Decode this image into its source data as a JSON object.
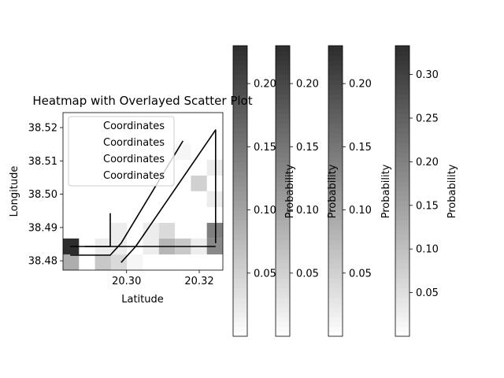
{
  "chart_data": {
    "type": "heatmap",
    "title": "Heatmap with Overlayed Scatter Plot",
    "xlabel": "Latitude",
    "ylabel": "Longitude",
    "xlim": [
      20.2825,
      20.3265
    ],
    "ylim": [
      38.4772,
      38.5245
    ],
    "xticks": [
      20.3,
      20.32
    ],
    "xtick_labels": [
      "20.30",
      "20.32"
    ],
    "yticks": [
      38.48,
      38.49,
      38.5,
      38.51,
      38.52
    ],
    "ytick_labels": [
      "38.48",
      "38.49",
      "38.50",
      "38.51",
      "38.52"
    ],
    "heatmap": {
      "x_edges": [
        20.2825,
        20.2869,
        20.2913,
        20.2957,
        20.3001,
        20.3045,
        20.3089,
        20.3133,
        20.3177,
        20.3221,
        20.3265
      ],
      "y_edges": [
        38.4772,
        38.4819,
        38.4867,
        38.4914,
        38.4961,
        38.5009,
        38.5056,
        38.5103,
        38.515,
        38.5198,
        38.5245
      ],
      "cells": [
        {
          "col": 0,
          "row": 0,
          "value": 0.09
        },
        {
          "col": 0,
          "row": 1,
          "value": 0.23
        },
        {
          "col": 2,
          "row": 0,
          "value": 0.06
        },
        {
          "col": 2,
          "row": 1,
          "value": 0.02
        },
        {
          "col": 3,
          "row": 0,
          "value": 0.04
        },
        {
          "col": 3,
          "row": 1,
          "value": 0.02
        },
        {
          "col": 3,
          "row": 2,
          "value": 0.02
        },
        {
          "col": 4,
          "row": 0,
          "value": 0.01
        },
        {
          "col": 5,
          "row": 1,
          "value": 0.02
        },
        {
          "col": 5,
          "row": 2,
          "value": 0.02
        },
        {
          "col": 6,
          "row": 1,
          "value": 0.08
        },
        {
          "col": 6,
          "row": 2,
          "value": 0.04
        },
        {
          "col": 7,
          "row": 1,
          "value": 0.06
        },
        {
          "col": 7,
          "row": 7,
          "value": 0.01
        },
        {
          "col": 8,
          "row": 1,
          "value": 0.02
        },
        {
          "col": 8,
          "row": 5,
          "value": 0.05
        },
        {
          "col": 9,
          "row": 1,
          "value": 0.13
        },
        {
          "col": 9,
          "row": 2,
          "value": 0.14
        },
        {
          "col": 9,
          "row": 4,
          "value": 0.02
        },
        {
          "col": 9,
          "row": 6,
          "value": 0.02
        },
        {
          "col": 10,
          "row": 1,
          "value": 0.16
        },
        {
          "col": 10,
          "row": 2,
          "value": 0.1
        },
        {
          "col": 10,
          "row": 3,
          "value": 0.03
        },
        {
          "col": 10,
          "row": 7,
          "value": 0.16
        },
        {
          "col": 10,
          "row": 8,
          "value": 0.07
        }
      ]
    },
    "series": [
      {
        "name": "Coordinates",
        "points": [
          [
            20.2845,
            38.4843
          ],
          [
            20.2955,
            38.4843
          ],
          [
            20.2955,
            38.4913
          ],
          [
            20.2955,
            38.4943
          ]
        ]
      },
      {
        "name": "Coordinates",
        "points": [
          [
            20.2845,
            38.4817
          ],
          [
            20.2955,
            38.4817
          ],
          [
            20.2985,
            38.4853
          ],
          [
            20.3155,
            38.516
          ]
        ]
      },
      {
        "name": "Coordinates",
        "points": [
          [
            20.2985,
            38.4795
          ],
          [
            20.3025,
            38.4843
          ],
          [
            20.3245,
            38.5193
          ],
          [
            20.3245,
            38.4943
          ],
          [
            20.3245,
            38.4853
          ]
        ]
      },
      {
        "name": "Coordinates",
        "points": [
          [
            20.2885,
            38.4843
          ],
          [
            20.3245,
            38.4843
          ]
        ]
      }
    ],
    "legend": {
      "location": "upper left",
      "entries": [
        "Coordinates",
        "Coordinates",
        "Coordinates",
        "Coordinates"
      ]
    },
    "colorbars": [
      {
        "label": "",
        "vmin": 0.0,
        "vmax": 0.23,
        "ticks": [
          0.05,
          0.1,
          0.15,
          0.2
        ],
        "tick_labels": [
          "0.05",
          "0.10",
          "0.15",
          "0.20"
        ]
      },
      {
        "label": "Probability",
        "vmin": 0.0,
        "vmax": 0.23,
        "ticks": [
          0.05,
          0.1,
          0.15,
          0.2
        ],
        "tick_labels": [
          "0.05",
          "0.10",
          "0.15",
          "0.20"
        ]
      },
      {
        "label": "Probability",
        "vmin": 0.0,
        "vmax": 0.23,
        "ticks": [
          0.05,
          0.1,
          0.15,
          0.2
        ],
        "tick_labels": [
          "0.05",
          "0.10",
          "0.15",
          "0.20"
        ]
      },
      {
        "label": "Probability",
        "vmin": 0.0,
        "vmax": 0.333,
        "ticks": [
          0.05,
          0.1,
          0.15,
          0.2,
          0.25,
          0.3
        ],
        "tick_labels": [
          "0.05",
          "0.10",
          "0.15",
          "0.20",
          "0.25",
          "0.30"
        ]
      },
      {
        "label": "Probability"
      }
    ],
    "colormap": {
      "low": "#ffffff",
      "high": "#000000"
    },
    "line_color": "#000000",
    "grid": false
  }
}
